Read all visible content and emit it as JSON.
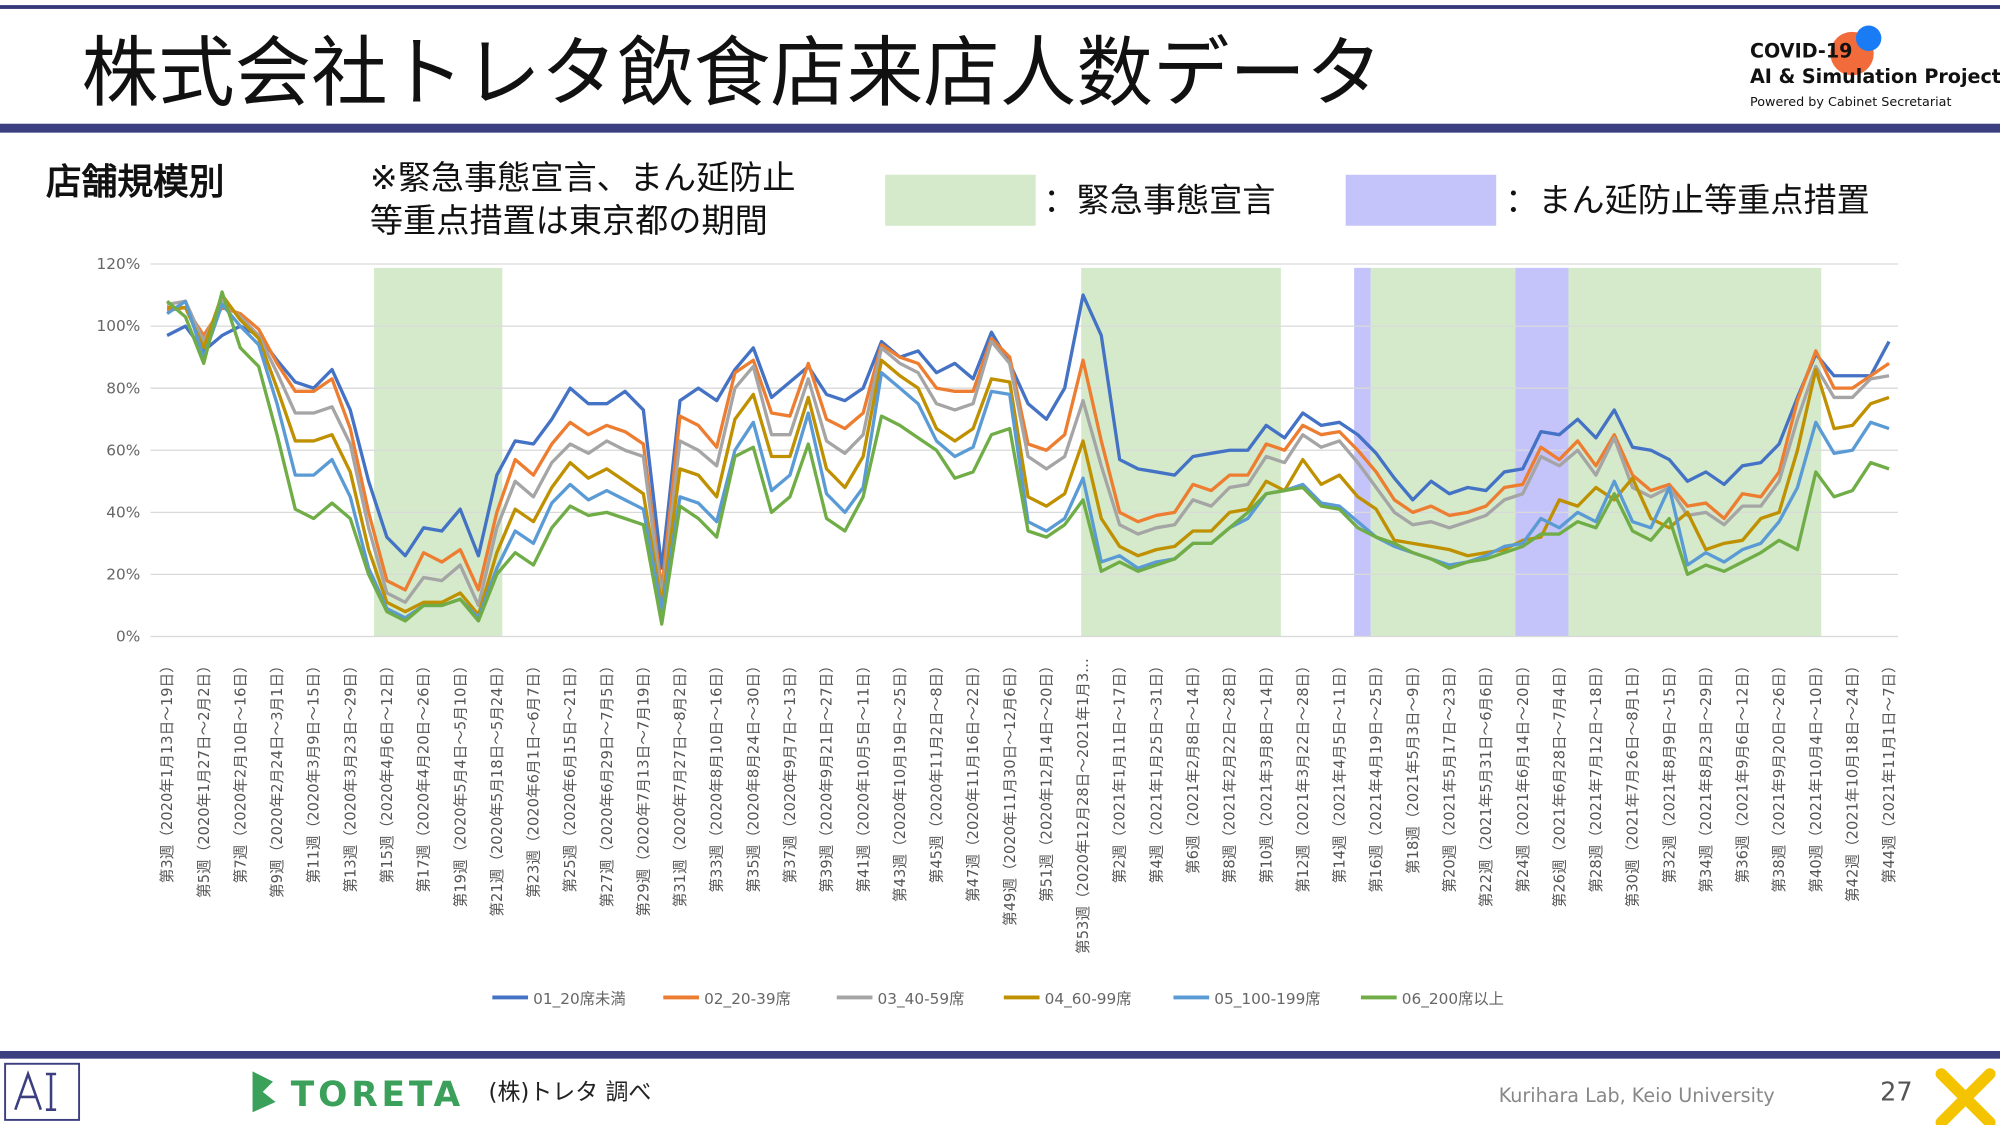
{
  "header": {
    "title": "株式会社トレタ飲食店来店人数データ",
    "logo": {
      "line1": "COVID-19",
      "line2": "AI & Simulation Project",
      "line3": "Powered by Cabinet Secretariat"
    }
  },
  "subtitle": "店舗規模別",
  "note": [
    "※緊急事態宣言、まん延防止",
    "等重点措置は東京都の期間"
  ],
  "period_legend": [
    {
      "label": "：緊急事態宣言",
      "color": "#d4eacb",
      "spans": [
        [
          11.3,
          18.3
        ],
        [
          49.9,
          60.8
        ],
        [
          65.7,
          73.6
        ],
        [
          76.5,
          90.3
        ]
      ]
    },
    {
      "label": "：まん延防止等重点措置",
      "color": "#c4c4fa",
      "spans": [
        [
          64.8,
          65.7
        ],
        [
          73.6,
          76.5
        ]
      ]
    }
  ],
  "chart_data": {
    "type": "line",
    "categories": [
      "第3週（2020年1月13日～19日）",
      null,
      "第5週（2020年1月27日～2月2日）",
      null,
      "第7週（2020年2月10日～16日）",
      null,
      "第9週（2020年2月24日～3月1日）",
      null,
      "第11週（2020年3月9日～15日）",
      null,
      "第13週（2020年3月23日～29日）",
      null,
      "第15週（2020年4月6日～12日）",
      null,
      "第17週（2020年4月20日～26日）",
      null,
      "第19週（2020年5月4日～5月10日）",
      null,
      "第21週（2020年5月18日～5月24日）",
      null,
      "第23週（2020年6月1日～6月7日）",
      null,
      "第25週（2020年6月15日～21日）",
      null,
      "第27週（2020年6月29日～7月5日）",
      null,
      "第29週（2020年7月13日～7月19日）",
      null,
      "第31週（2020年7月27日～8月2日）",
      null,
      "第33週（2020年8月10日～16日）",
      null,
      "第35週（2020年8月24日～30日）",
      null,
      "第37週（2020年9月7日～13日）",
      null,
      "第39週（2020年9月21日～27日）",
      null,
      "第41週（2020年10月5日～11日）",
      null,
      "第43週（2020年10月19日～25日）",
      null,
      "第45週（2020年11月2日～8日）",
      null,
      "第47週（2020年11月16日～22日）",
      null,
      "第49週（2020年11月30日～12月6日）",
      null,
      "第51週（2020年12月14日～20日）",
      null,
      "第53週（2020年12月28日～2021年1月3…",
      null,
      "第2週（2021年1月11日～17日）",
      null,
      "第4週（2021年1月25日～31日）",
      null,
      "第6週（2021年2月8日～14日）",
      null,
      "第8週（2021年2月22日～28日）",
      null,
      "第10週（2021年3月8日～14日）",
      null,
      "第12週（2021年3月22日～28日）",
      null,
      "第14週（2021年4月5日～11日）",
      null,
      "第16週（2021年4月19日～25日）",
      null,
      "第18週（2021年5月3日～9日）",
      null,
      "第20週（2021年5月17日～23日）",
      null,
      "第22週（2021年5月31日～6月6日）",
      null,
      "第24週（2021年6月14日～20日）",
      null,
      "第26週（2021年6月28日～7月4日）",
      null,
      "第28週（2021年7月12日～18日）",
      null,
      "第30週（2021年7月26日～8月1日）",
      null,
      "第32週（2021年8月9日～15日）",
      null,
      "第34週（2021年8月23日～29日）",
      null,
      "第36週（2021年9月6日～12日）",
      null,
      "第38週（2021年9月20日～26日）",
      null,
      "第40週（2021年10月4日～10日）",
      null,
      "第42週（2021年10月18日～24日）",
      null,
      "第44週（2021年11月1日～7日）"
    ],
    "series": [
      {
        "name": "01_20席未満",
        "color": "#4472c4",
        "values": [
          97,
          100,
          92,
          97,
          100,
          97,
          89,
          82,
          80,
          86,
          73,
          50,
          32,
          26,
          35,
          34,
          41,
          26,
          52,
          63,
          62,
          70,
          80,
          75,
          75,
          79,
          73,
          22,
          76,
          80,
          76,
          86,
          93,
          77,
          82,
          87,
          78,
          76,
          80,
          95,
          90,
          92,
          85,
          88,
          83,
          98,
          88,
          75,
          70,
          80,
          110,
          97,
          57,
          54,
          53,
          52,
          58,
          59,
          60,
          60,
          68,
          64,
          72,
          68,
          69,
          65,
          59,
          51,
          44,
          50,
          46,
          48,
          47,
          53,
          54,
          66,
          65,
          70,
          64,
          73,
          61,
          60,
          57,
          50,
          53,
          49,
          55,
          56,
          62,
          77,
          91,
          84,
          84,
          84,
          95
        ]
      },
      {
        "name": "02_20-39席",
        "color": "#ed7d31",
        "values": [
          105,
          106,
          97,
          106,
          104,
          99,
          88,
          79,
          79,
          83,
          67,
          40,
          18,
          15,
          27,
          24,
          28,
          15,
          40,
          57,
          52,
          62,
          69,
          65,
          68,
          66,
          62,
          15,
          71,
          68,
          61,
          85,
          89,
          72,
          71,
          88,
          70,
          67,
          72,
          94,
          90,
          88,
          80,
          79,
          79,
          96,
          90,
          62,
          60,
          65,
          89,
          63,
          40,
          37,
          39,
          40,
          49,
          47,
          52,
          52,
          62,
          60,
          68,
          65,
          66,
          60,
          53,
          44,
          40,
          42,
          39,
          40,
          42,
          48,
          49,
          61,
          57,
          63,
          55,
          65,
          52,
          47,
          49,
          42,
          43,
          38,
          46,
          45,
          53,
          76,
          92,
          80,
          80,
          84,
          88
        ]
      },
      {
        "name": "03_40-59席",
        "color": "#a5a5a5",
        "values": [
          107,
          108,
          95,
          108,
          103,
          97,
          85,
          72,
          72,
          74,
          62,
          35,
          14,
          11,
          19,
          18,
          23,
          10,
          35,
          50,
          45,
          56,
          62,
          59,
          63,
          60,
          58,
          12,
          63,
          60,
          55,
          80,
          87,
          65,
          65,
          83,
          63,
          59,
          65,
          93,
          88,
          85,
          75,
          73,
          75,
          95,
          88,
          58,
          54,
          58,
          76,
          55,
          36,
          33,
          35,
          36,
          44,
          42,
          48,
          49,
          58,
          56,
          65,
          61,
          63,
          56,
          48,
          40,
          36,
          37,
          35,
          37,
          39,
          44,
          46,
          58,
          55,
          60,
          52,
          64,
          48,
          45,
          48,
          39,
          40,
          36,
          42,
          42,
          50,
          70,
          87,
          77,
          77,
          83,
          84
        ]
      },
      {
        "name": "04_60-99席",
        "color": "#bf9000",
        "values": [
          106,
          106,
          93,
          110,
          102,
          96,
          80,
          63,
          63,
          65,
          53,
          28,
          11,
          8,
          11,
          11,
          14,
          7,
          27,
          41,
          37,
          48,
          56,
          51,
          54,
          50,
          46,
          10,
          54,
          52,
          45,
          70,
          78,
          58,
          58,
          77,
          54,
          48,
          58,
          89,
          84,
          80,
          67,
          63,
          67,
          83,
          82,
          45,
          42,
          46,
          63,
          38,
          29,
          26,
          28,
          29,
          34,
          34,
          40,
          41,
          50,
          47,
          57,
          49,
          52,
          45,
          41,
          31,
          30,
          29,
          28,
          26,
          27,
          28,
          31,
          32,
          44,
          42,
          48,
          44,
          51,
          38,
          35,
          40,
          28,
          30,
          31,
          38,
          40,
          60,
          86,
          67,
          68,
          75,
          77
        ]
      },
      {
        "name": "05_100-199席",
        "color": "#5b9bd5",
        "values": [
          104,
          108,
          90,
          107,
          100,
          94,
          75,
          52,
          52,
          57,
          45,
          22,
          9,
          6,
          10,
          10,
          12,
          6,
          22,
          34,
          30,
          43,
          49,
          44,
          47,
          44,
          41,
          8,
          45,
          43,
          37,
          60,
          69,
          47,
          52,
          72,
          46,
          40,
          48,
          85,
          80,
          75,
          63,
          58,
          61,
          79,
          78,
          37,
          34,
          38,
          51,
          24,
          26,
          22,
          24,
          25,
          30,
          30,
          35,
          38,
          46,
          47,
          49,
          43,
          42,
          37,
          32,
          29,
          27,
          25,
          23,
          24,
          26,
          29,
          30,
          38,
          35,
          40,
          37,
          50,
          37,
          35,
          48,
          23,
          27,
          24,
          28,
          30,
          37,
          48,
          69,
          59,
          60,
          69,
          67
        ]
      },
      {
        "name": "06_200席以上",
        "color": "#70ad47",
        "values": [
          108,
          103,
          88,
          111,
          93,
          87,
          65,
          41,
          38,
          43,
          38,
          20,
          8,
          5,
          10,
          10,
          12,
          5,
          20,
          27,
          23,
          35,
          42,
          39,
          40,
          38,
          36,
          4,
          42,
          38,
          32,
          58,
          61,
          40,
          45,
          62,
          38,
          34,
          45,
          71,
          68,
          64,
          60,
          51,
          53,
          65,
          67,
          34,
          32,
          36,
          44,
          21,
          24,
          21,
          23,
          25,
          30,
          30,
          35,
          40,
          46,
          47,
          48,
          42,
          41,
          35,
          32,
          30,
          27,
          25,
          22,
          24,
          25,
          27,
          29,
          33,
          33,
          37,
          35,
          46,
          34,
          31,
          38,
          20,
          23,
          21,
          24,
          27,
          31,
          28,
          53,
          45,
          47,
          56,
          54
        ]
      }
    ],
    "ylim": [
      0,
      120
    ],
    "yticks": [
      {
        "value": 0,
        "label": "0%"
      },
      {
        "value": 20,
        "label": "20%"
      },
      {
        "value": 40,
        "label": "40%"
      },
      {
        "value": 60,
        "label": "60%"
      },
      {
        "value": 80,
        "label": "80%"
      },
      {
        "value": 100,
        "label": "100%"
      },
      {
        "value": 120,
        "label": "120%"
      }
    ],
    "grid": true
  },
  "footer": {
    "brand": "TORETA",
    "source": "(株)トレタ 調べ",
    "credit": "Kurihara Lab, Keio University",
    "page": 27
  }
}
